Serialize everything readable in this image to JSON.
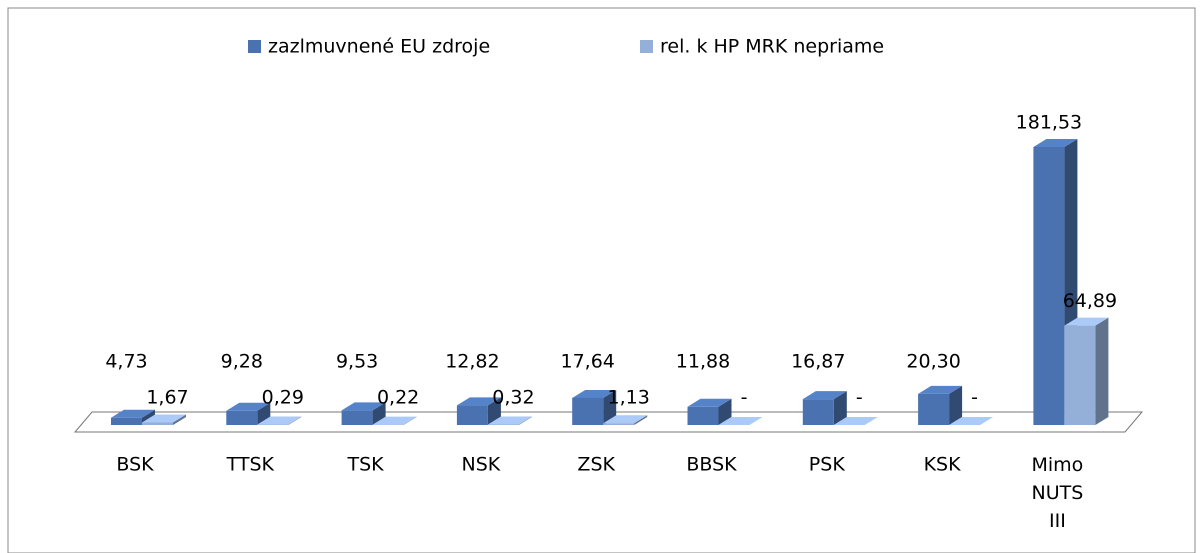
{
  "chart_data": {
    "type": "bar3d",
    "categories": [
      "BSK",
      "TTSK",
      "TSK",
      "NSK",
      "ZSK",
      "BBSK",
      "PSK",
      "KSK",
      "Mimo NUTS III"
    ],
    "series": [
      {
        "name": "zazlmuvnené EU zdroje",
        "color": "#4a72b0",
        "values": [
          4.73,
          9.28,
          9.53,
          12.82,
          17.64,
          11.88,
          16.87,
          20.3,
          181.53
        ],
        "value_labels": [
          "4,73",
          "9,28",
          "9,53",
          "12,82",
          "17,64",
          "11,88",
          "16,87",
          "20,30",
          "181,53"
        ]
      },
      {
        "name": "rel. k HP MRK nepriame",
        "color": "#95b0d8",
        "values": [
          1.67,
          0.29,
          0.22,
          0.32,
          1.13,
          0,
          0,
          0,
          64.89
        ],
        "value_labels": [
          "1,67",
          "0,29",
          "0,22",
          "0,32",
          "1,13",
          "-",
          "-",
          "-",
          "64,89"
        ]
      }
    ],
    "legend": "top"
  }
}
